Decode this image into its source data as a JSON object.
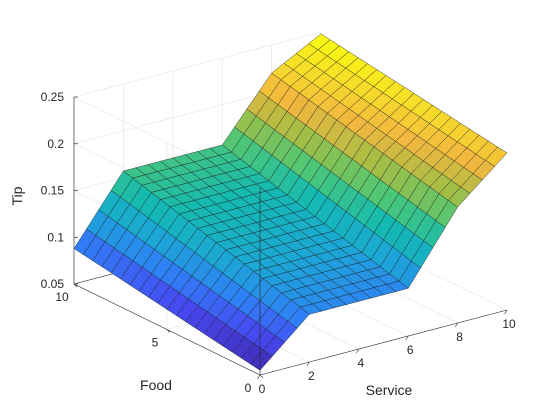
{
  "chart_data": {
    "type": "surface",
    "xlabel": "Service",
    "ylabel": "Food",
    "zlabel": "Tip",
    "xlim": [
      0,
      10
    ],
    "ylim": [
      0,
      10
    ],
    "zlim": [
      0.05,
      0.25
    ],
    "x_ticks": [
      0,
      2,
      4,
      6,
      8,
      10
    ],
    "y_ticks": [
      0,
      5,
      10
    ],
    "z_ticks": [
      0.05,
      0.1,
      0.15,
      0.2,
      0.25
    ],
    "x_tick_labels": [
      "0",
      "2",
      "4",
      "6",
      "8",
      "10"
    ],
    "y_tick_labels": [
      "0",
      "5",
      "10"
    ],
    "z_tick_labels": [
      "0.05",
      "0.1",
      "0.15",
      "0.2",
      "0.25"
    ],
    "grid": true,
    "colormap": "parula",
    "colormap_colors": [
      "#3e26a8",
      "#4748f1",
      "#2e82f5",
      "#1ba8d4",
      "#14bab1",
      "#4fc774",
      "#a5be45",
      "#f2b73f",
      "#f7dd2a",
      "#f9fb0e"
    ],
    "grid_points": {
      "x_count": 21,
      "y_count": 21
    },
    "surface_z_corners": {
      "service_0_food_0": 0.055,
      "service_0_food_10": 0.088,
      "service_10_food_0": 0.218,
      "service_10_food_10": 0.248
    },
    "surface_z_along_service_at_food_0": [
      [
        0,
        0.055
      ],
      [
        2,
        0.101
      ],
      [
        4,
        0.101
      ],
      [
        6,
        0.101
      ],
      [
        8,
        0.174
      ],
      [
        10,
        0.218
      ]
    ],
    "surface_z_along_service_at_food_10": [
      [
        0,
        0.088
      ],
      [
        2,
        0.157
      ],
      [
        4,
        0.157
      ],
      [
        6,
        0.157
      ],
      [
        8,
        0.22
      ],
      [
        10,
        0.248
      ]
    ]
  }
}
